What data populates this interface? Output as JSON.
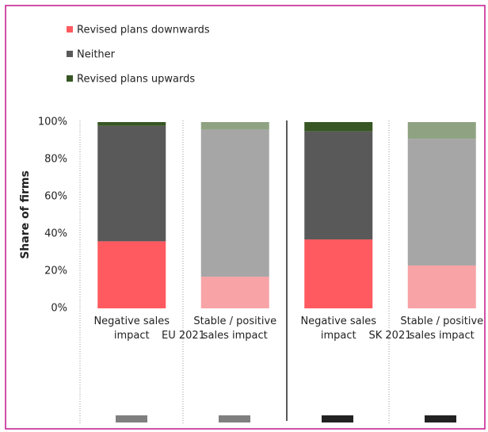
{
  "chart_data": {
    "type": "stacked_bar",
    "ylabel": "Share of firms",
    "categories": [
      "Negative sales impact",
      "Stable / positive sales impact",
      "Negative sales impact",
      "Stable / positive sales impact"
    ],
    "group_labels": [
      "EU 2021",
      "SK 2021"
    ],
    "series": [
      {
        "name": "Revised  plans downwards",
        "color": "#ff5a5f",
        "colors": [
          "#ff5a5f",
          "#f8a3a6",
          "#ff5a5f",
          "#f8a3a6"
        ],
        "values": [
          36,
          17,
          37,
          23
        ]
      },
      {
        "name": "Neither",
        "color": "#595959",
        "colors": [
          "#595959",
          "#a6a6a6",
          "#595959",
          "#a6a6a6"
        ],
        "values": [
          62,
          79,
          58,
          68
        ]
      },
      {
        "name": "Revised  plans upwards",
        "color": "#375623",
        "colors": [
          "#375623",
          "#8fa382",
          "#375623",
          "#8fa382"
        ],
        "values": [
          2,
          4,
          5,
          9
        ]
      }
    ],
    "ylim": [
      0,
      100
    ],
    "yticks": [
      {
        "value": 0,
        "label": "0%"
      },
      {
        "value": 20,
        "label": "20%"
      },
      {
        "value": 40,
        "label": "40%"
      },
      {
        "value": 60,
        "label": "60%"
      },
      {
        "value": 80,
        "label": "80%"
      },
      {
        "value": 100,
        "label": "100%"
      }
    ],
    "legend": "top-left"
  }
}
